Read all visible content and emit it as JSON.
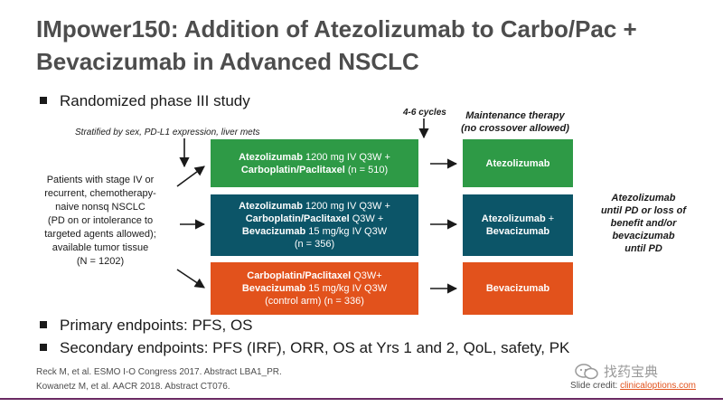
{
  "title": {
    "line1": "IMpower150: Addition of Atezolizumab to Carbo/Pac +",
    "line2": "Bevacizumab in Advanced NSCLC"
  },
  "bullets": {
    "design": "Randomized phase III study",
    "primary": "Primary endpoints: PFS, OS",
    "secondary": "Secondary endpoints: PFS (IRF), ORR, OS at Yrs 1 and 2, QoL, safety, PK"
  },
  "stratified": "Stratified by sex, PD-L1 expression, liver mets",
  "cycles": "4-6 cycles",
  "maintenance_header": {
    "line1": "Maintenance therapy",
    "line2": "(no crossover allowed)"
  },
  "patients": {
    "line1": "Patients with stage IV or",
    "line2": "recurrent, chemotherapy-",
    "line3": "naive nonsq NSCLC",
    "line4": "(PD on or intolerance to",
    "line5": "targeted agents allowed);",
    "line6": "available tumor tissue",
    "line7": "(N = 1202)"
  },
  "arms": [
    {
      "line1_bold": "Atezolizumab",
      "line1_rest": " 1200 mg IV Q3W +",
      "line2_bold": "Carboplatin/Paclitaxel",
      "line2_rest": " (n = 510)",
      "color": "#2e9a46"
    },
    {
      "line1_bold": "Atezolizumab",
      "line1_rest": " 1200 mg IV Q3W +",
      "line2_bold": "Carboplatin/Paclitaxel",
      "line2_rest": " Q3W +",
      "line3_bold": "Bevacizumab",
      "line3_rest": " 15 mg/kg IV Q3W",
      "line4": "(n = 356)",
      "color": "#0c5568"
    },
    {
      "line1_bold": "Carboplatin/Paclitaxel",
      "line1_rest": " Q3W+",
      "line2_bold": "Bevacizumab",
      "line2_rest": " 15 mg/kg IV Q3W",
      "line3": "(control arm) (n = 336)",
      "color": "#e2521c"
    }
  ],
  "maintenance": [
    {
      "line1": "Atezolizumab"
    },
    {
      "line1_bold": "Atezolizumab",
      "line1_rest": " +",
      "line2": "Bevacizumab"
    },
    {
      "line1": "Bevacizumab"
    }
  ],
  "final_note": {
    "line1": "Atezolizumab",
    "line2": "until PD or loss of",
    "line3": "benefit and/or",
    "line4": "bevacizumab",
    "line5": "until PD"
  },
  "references": {
    "ref1": "Reck M, et al. ESMO I-O Congress 2017. Abstract LBA1_PR.",
    "ref2": "Kowanetz M, et al. AACR 2018. Abstract CT076."
  },
  "credit": {
    "prefix": "Slide credit: ",
    "link": "clinicaloptions.com"
  },
  "watermark": "找药宝典",
  "colors": {
    "title": "#4d4d4d",
    "green": "#2e9a46",
    "teal": "#0c5568",
    "orange": "#e2521c",
    "rule": "#6a2a63"
  }
}
